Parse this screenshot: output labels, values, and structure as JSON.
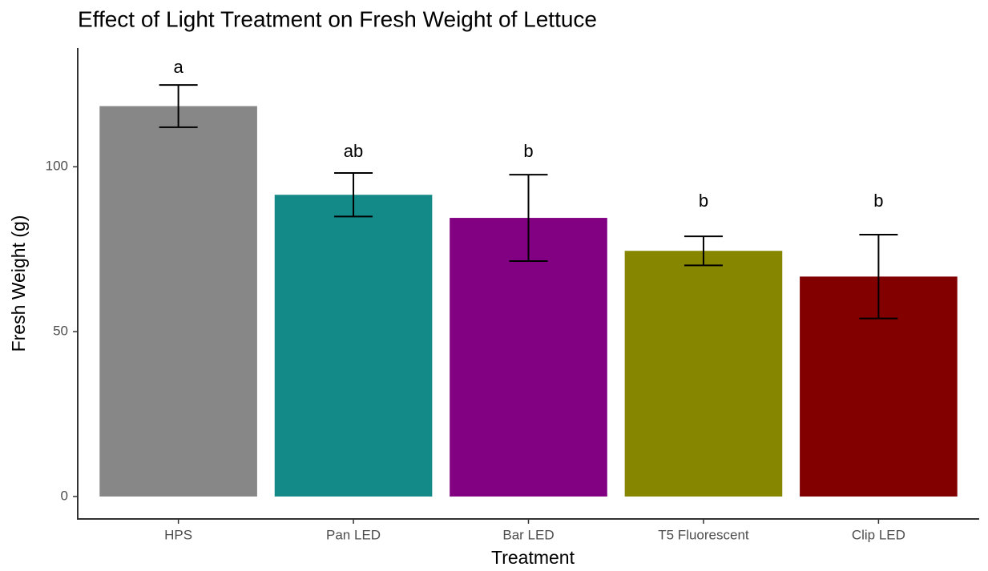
{
  "chart_data": {
    "type": "bar",
    "title": "Effect of Light Treatment on Fresh Weight of Lettuce",
    "x_label": "Treatment",
    "y_label": "Fresh Weight (g)",
    "categories": [
      "HPS",
      "Pan LED",
      "Bar LED",
      "T5 Fluorescent",
      "Clip LED"
    ],
    "values": [
      118.4,
      91.5,
      84.5,
      74.5,
      66.7
    ],
    "errors": [
      6.4,
      6.6,
      13.1,
      4.4,
      12.7
    ],
    "colors": [
      "#878787",
      "#138a87",
      "#820082",
      "#868600",
      "#820000"
    ],
    "annotations": [
      {
        "text": "a",
        "y": 129.9
      },
      {
        "text": "ab",
        "y": 104.4
      },
      {
        "text": "b",
        "y": 104.4
      },
      {
        "text": "b",
        "y": 89.3
      },
      {
        "text": "b",
        "y": 89.3
      }
    ],
    "ylim": [
      -6.8,
      136
    ],
    "yticks": [
      0,
      50,
      100
    ],
    "grid": false
  }
}
